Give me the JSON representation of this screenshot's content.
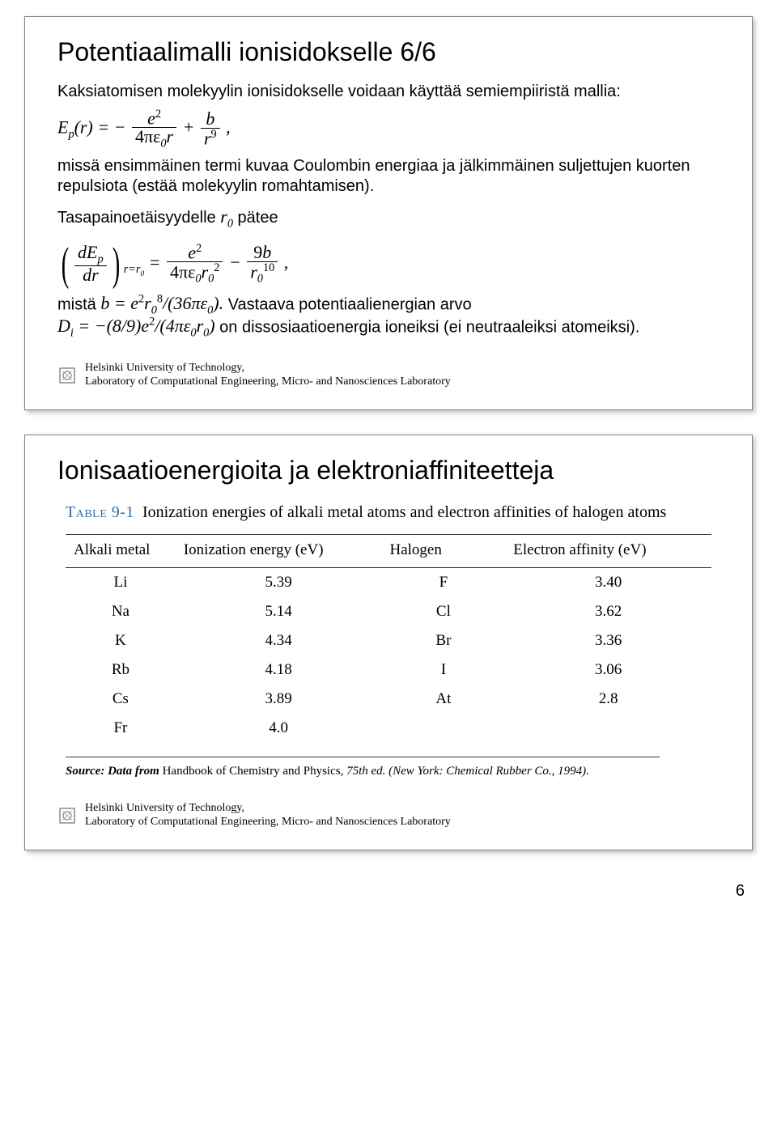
{
  "page_number": "6",
  "footer": {
    "line1": "Helsinki University of Technology,",
    "line2": "Laboratory of Computational Engineering, Micro- and Nanosciences Laboratory",
    "logo_colors": {
      "primary": "#6f6f6f",
      "accent": "#9a9a9a"
    }
  },
  "slide1": {
    "title": "Potentiaalimalli ionisidokselle 6/6",
    "p1": "Kaksiatomisen molekyylin ionisidokselle voidaan käyttää semiempiiristä mallia:",
    "eq1_html": "E<span class='sub'>p</span>(r) = − <span class='frac'><span class='num'>e<span class='sup'>2</span></span><span class='den upright'>4πε<span class='sub'>0</span><span style='font-style:italic'>r</span></span></span> + <span class='frac'><span class='num'>b</span><span class='den'>r<span class='sup'>9</span></span></span> ,",
    "p2": "missä ensimmäinen termi kuvaa Coulombin energiaa ja jälkimmäinen suljettujen kuorten repulsiota (estää molekyylin romahtamisen).",
    "p3_pre": "Tasapainoetäisyydelle ",
    "p3_var_html": "r<span class='sub'>0</span>",
    "p3_post": " pätee",
    "eq2_html": "<span class='lparen-big'>(</span><span class='frac'><span class='num'>dE<span class='sub'>p</span></span><span class='den'>dr</span></span><span class='rparen-big'>)</span><span class='sub' style='font-style:italic'>r=r<span class=\"sub\">0</span></span> = <span class='frac'><span class='num'>e<span class='sup'>2</span></span><span class='den upright'>4πε<span class='sub'>0</span><span style='font-style:italic'>r</span><span class='sub'>0</span><span class='sup'>2</span></span></span> − <span class='frac'><span class='num upright'>9<span style='font-style:italic'>b</span></span><span class='den'>r<span class='sub'>0</span><span class='sup'>10</span></span></span> ,",
    "p4_pre": "mistä ",
    "p4_eq_html": "b = e<span class='sup'>2</span>r<span class='sub'>0</span><span class='sup'>8</span>/(36πε<span class='sub'>0</span>).",
    "p4_post": " Vastaava potentiaalienergian arvo",
    "p5_eq_html": "D<span class='sub'>i</span> = −(8/9)e<span class='sup'>2</span>/(4πε<span class='sub'>0</span>r<span class='sub'>0</span>)",
    "p5_post": " on dissosiaatioenergia ioneiksi (ei neutraaleiksi atomeiksi)."
  },
  "slide2": {
    "title": "Ionisaatioenergioita ja elektroniaffiniteetteja",
    "table": {
      "table_number": "Table 9-1",
      "caption": "Ionization energies of alkali metal atoms and electron affinities of halogen atoms",
      "columns": [
        "Alkali metal",
        "Ionization energy (eV)",
        "Halogen",
        "Electron affinity (eV)"
      ],
      "rows": [
        [
          "Li",
          "5.39",
          "F",
          "3.40"
        ],
        [
          "Na",
          "5.14",
          "Cl",
          "3.62"
        ],
        [
          "K",
          "4.34",
          "Br",
          "3.36"
        ],
        [
          "Rb",
          "4.18",
          "I",
          "3.06"
        ],
        [
          "Cs",
          "3.89",
          "At",
          "2.8"
        ],
        [
          "Fr",
          "4.0",
          "",
          ""
        ]
      ],
      "source_label": "Source: Data from ",
      "source_text": "Handbook of Chemistry and Physics, ",
      "source_ital": "75th ed. (New York: Chemical Rubber Co., 1994).",
      "colors": {
        "caption_accent": "#3a6aa8",
        "rule": "#333333",
        "text": "#000000"
      },
      "font_sizes": {
        "caption": 20,
        "header": 19,
        "cell": 19,
        "source": 15
      }
    }
  }
}
